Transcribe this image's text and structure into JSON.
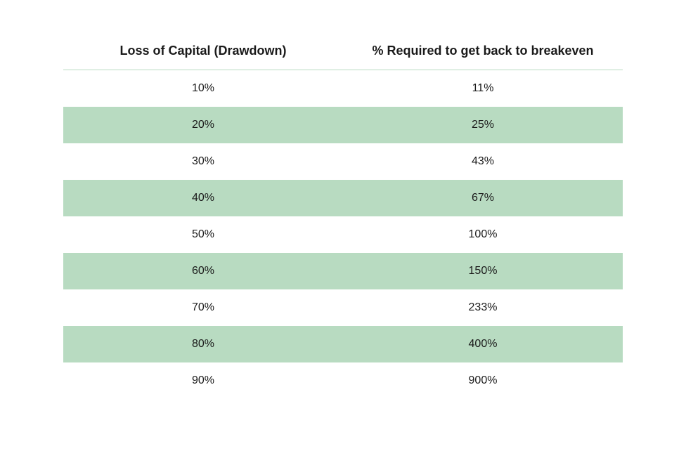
{
  "table": {
    "type": "table",
    "columns": [
      {
        "label": "Loss of Capital (Drawdown)",
        "width": "50%",
        "align": "center"
      },
      {
        "label": "% Required to get back to breakeven",
        "width": "50%",
        "align": "center"
      }
    ],
    "rows": [
      {
        "loss": "10%",
        "required": "11%",
        "striped": false
      },
      {
        "loss": "20%",
        "required": "25%",
        "striped": true
      },
      {
        "loss": "30%",
        "required": "43%",
        "striped": false
      },
      {
        "loss": "40%",
        "required": "67%",
        "striped": true
      },
      {
        "loss": "50%",
        "required": "100%",
        "striped": false
      },
      {
        "loss": "60%",
        "required": "150%",
        "striped": true
      },
      {
        "loss": "70%",
        "required": "233%",
        "striped": false
      },
      {
        "loss": "80%",
        "required": "400%",
        "striped": true
      },
      {
        "loss": "90%",
        "required": "900%",
        "striped": false
      }
    ],
    "header_fontsize": 18,
    "header_fontweight": 700,
    "cell_fontsize": 16,
    "cell_fontweight": 400,
    "text_color": "#1a1a1a",
    "background_color": "#ffffff",
    "stripe_color": "#b8dbc1",
    "header_border_color": "#b8dbc1",
    "row_padding_y": 17,
    "header_padding_y": 14
  }
}
